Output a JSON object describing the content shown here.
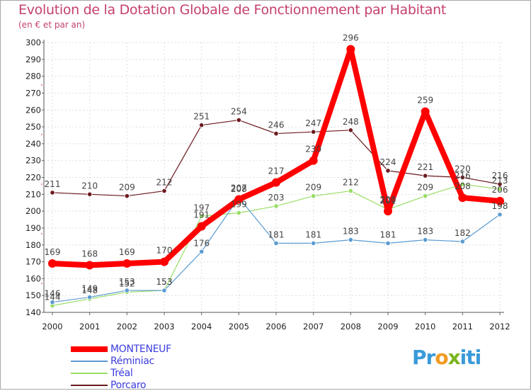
{
  "title": "Evolution de la Dotation Globale de Fonctionnement par Habitant",
  "subtitle": "(en € et par an)",
  "logo": {
    "text": "Proxiti",
    "letters": [
      "P",
      "r",
      "o",
      "x",
      "i",
      "t",
      "i"
    ],
    "colors": [
      "#3a9ad9",
      "#3a9ad9",
      "#f29a1f",
      "#7ab51d",
      "#3a9ad9",
      "#3a9ad9",
      "#3a9ad9"
    ]
  },
  "chart_data": {
    "type": "line",
    "title": "Evolution de la Dotation Globale de Fonctionnement par Habitant",
    "xlabel": "",
    "ylabel": "(en € et par an)",
    "x": [
      "2000",
      "2001",
      "2002",
      "2003",
      "2004",
      "2005",
      "2006",
      "2007",
      "2008",
      "2009",
      "2010",
      "2011",
      "2012"
    ],
    "ylim": [
      140,
      300
    ],
    "yticks": [
      "140",
      "150",
      "160",
      "170",
      "180",
      "190",
      "200",
      "210",
      "220",
      "230",
      "240",
      "250",
      "260",
      "270",
      "280",
      "290",
      "300"
    ],
    "grid": true,
    "legend_position": "bottom-left",
    "series": [
      {
        "name": "Porcaro",
        "color": "#6b1a1f",
        "values": [
          211,
          210,
          209,
          212,
          251,
          254,
          246,
          247,
          248,
          224,
          221,
          220,
          216
        ],
        "labels": [
          "211",
          "210",
          "209",
          "212",
          "251",
          "254",
          "246",
          "247",
          "248",
          "224",
          "221",
          "220",
          "216"
        ]
      },
      {
        "name": "Tréal",
        "color": "#99dd66",
        "values": [
          144,
          148,
          152,
          153,
          197,
          199,
          203,
          209,
          212,
          201,
          209,
          216,
          213
        ],
        "labels": [
          "144",
          "148",
          "152",
          "153",
          "197",
          "199",
          "203",
          "209",
          "212",
          "201",
          "209",
          "216",
          "213"
        ]
      },
      {
        "name": "Réminiac",
        "color": "#5b9bd1",
        "values": [
          146,
          149,
          153,
          153,
          176,
          208,
          181,
          181,
          183,
          181,
          183,
          182,
          198
        ],
        "labels": [
          "146",
          "149",
          "153",
          "153",
          "176",
          "208",
          "181",
          "181",
          "183",
          "181",
          "183",
          "182",
          "198"
        ]
      },
      {
        "name": "MONTENEUF",
        "color": "#ff0000",
        "values": [
          169,
          168,
          169,
          170,
          191,
          207,
          217,
          230,
          296,
          200,
          259,
          208,
          206
        ],
        "labels": [
          "169",
          "168",
          "169",
          "170",
          "191",
          "207",
          "217",
          "230",
          "296",
          "200",
          "259",
          "208",
          "206"
        ]
      }
    ],
    "legend": [
      {
        "name": "MONTENEUF",
        "color": "#ff0000",
        "text_color": "#3c3cde"
      },
      {
        "name": "Réminiac",
        "color": "#5b9bd1",
        "text_color": "#3c3cde"
      },
      {
        "name": "Tréal",
        "color": "#99dd66",
        "text_color": "#3c3cde"
      },
      {
        "name": "Porcaro",
        "color": "#6b1a1f",
        "text_color": "#3c3cde"
      }
    ]
  }
}
